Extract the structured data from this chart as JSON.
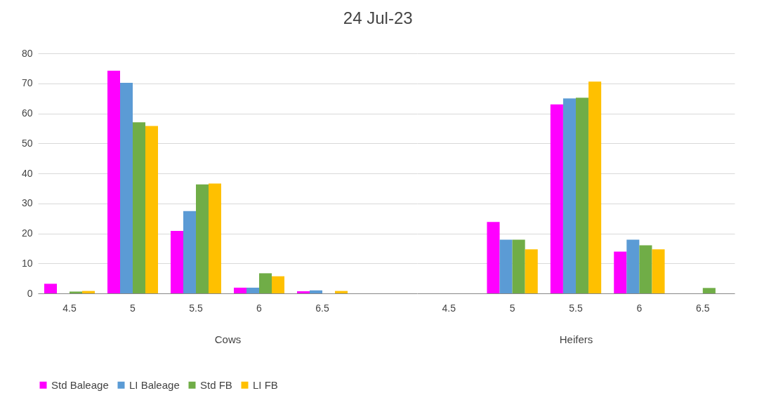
{
  "chart_data": [
    {
      "type": "bar",
      "title": "24 Jul-23",
      "xlabel": "Cows",
      "categories": [
        "4.5",
        "5",
        "5.5",
        "6",
        "6.5",
        null
      ],
      "ylim": [
        0,
        80
      ],
      "yticks": [
        0,
        10,
        20,
        30,
        40,
        50,
        60,
        70,
        80
      ],
      "grid": "y",
      "legend": "bottom",
      "series": [
        {
          "name": "Std Baleage",
          "color": "#ff00ff",
          "values": [
            3.2,
            74.2,
            20.8,
            1.9,
            0.7,
            null
          ]
        },
        {
          "name": "LI Baleage",
          "color": "#5b9bd5",
          "values": [
            0,
            70.2,
            27.4,
            1.9,
            1.0,
            null
          ]
        },
        {
          "name": "Std FB",
          "color": "#70ad47",
          "values": [
            0.6,
            57,
            36.3,
            6.7,
            0,
            null
          ]
        },
        {
          "name": "LI FB",
          "color": "#ffc000",
          "values": [
            0.8,
            55.8,
            36.6,
            5.7,
            0.8,
            null
          ]
        }
      ]
    },
    {
      "type": "bar",
      "xlabel": "Heifers",
      "categories": [
        "4.5",
        "5",
        "5.5",
        "6",
        "6.5"
      ],
      "ylim": [
        0,
        80
      ],
      "yticks": [
        0,
        10,
        20,
        30,
        40,
        50,
        60,
        70,
        80
      ],
      "grid": "y",
      "tick_labels": "x",
      "series": [
        {
          "name": "Std Baleage",
          "color": "#ff00ff",
          "values": [
            0,
            23.8,
            63,
            13.9,
            0
          ]
        },
        {
          "name": "LI Baleage",
          "color": "#5b9bd5",
          "values": [
            0,
            17.9,
            65,
            17.9,
            0
          ]
        },
        {
          "name": "Std FB",
          "color": "#70ad47",
          "values": [
            0,
            17.9,
            65.2,
            16,
            1.8
          ]
        },
        {
          "name": "LI FB",
          "color": "#ffc000",
          "values": [
            0,
            14.7,
            70.6,
            14.7,
            0
          ]
        }
      ]
    }
  ]
}
